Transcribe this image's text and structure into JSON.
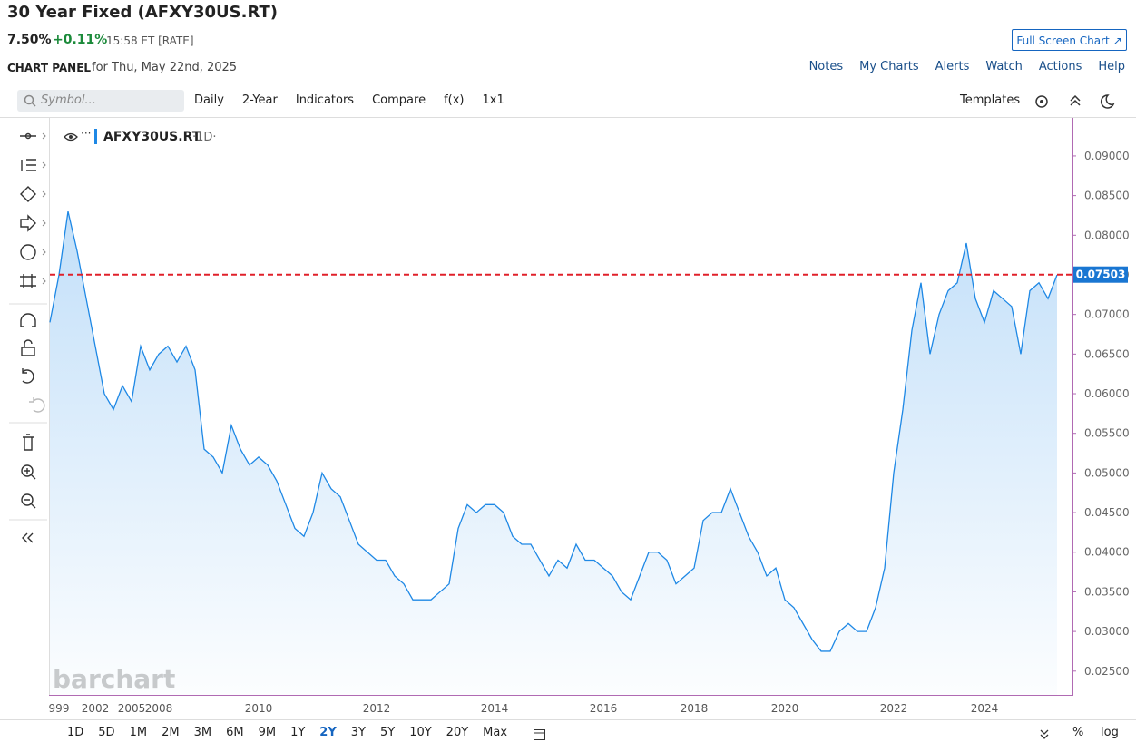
{
  "header": {
    "title": "30 Year Fixed (AFXY30US.RT)",
    "price": "7.50%",
    "change": "+0.11%",
    "time": "15:58 ET [RATE]",
    "fullscreen": "Full Screen Chart",
    "panel": "CHART PANEL",
    "date": "for Thu, May 22nd, 2025",
    "nav": [
      "Notes",
      "My Charts",
      "Alerts",
      "Watch",
      "Actions",
      "Help"
    ]
  },
  "toolbar": {
    "symbol": "Symbol...",
    "items": [
      "Daily",
      "2-Year",
      "Indicators",
      "Compare",
      "f(x)",
      "1x1"
    ],
    "templates": "Templates"
  },
  "footer": {
    "periods": [
      "1D",
      "5D",
      "1M",
      "2M",
      "3M",
      "6M",
      "9M",
      "1Y",
      "2Y",
      "3Y",
      "5Y",
      "10Y",
      "20Y",
      "Max"
    ],
    "percent": "%",
    "log": "log"
  },
  "chart_data": {
    "type": "line",
    "watermark": "barchart",
    "legend": {
      "symbol": "AFXY30US.RT",
      "interval": "·1D·"
    },
    "categories": [
      null,
      "999",
      null,
      null,
      null,
      "2002",
      null,
      null,
      null,
      "2005",
      null,
      null,
      "2008",
      null,
      null,
      null,
      null,
      null,
      null,
      null,
      null,
      null,
      null,
      "2010",
      null,
      null,
      null,
      null,
      null,
      null,
      null,
      null,
      null,
      null,
      null,
      null,
      "2012",
      null,
      null,
      null,
      null,
      null,
      null,
      null,
      null,
      null,
      null,
      null,
      null,
      "2014",
      null,
      null,
      null,
      null,
      null,
      null,
      null,
      null,
      null,
      null,
      null,
      "2016",
      null,
      null,
      null,
      null,
      null,
      null,
      null,
      null,
      null,
      "2018",
      null,
      null,
      null,
      null,
      null,
      null,
      null,
      null,
      null,
      "2020",
      null,
      null,
      null,
      null,
      null,
      null,
      null,
      null,
      null,
      null,
      null,
      "2022",
      null,
      null,
      null,
      null,
      null,
      null,
      null,
      null,
      null,
      "2024",
      null,
      null,
      null,
      null,
      null,
      null,
      null,
      null
    ],
    "series": [
      {
        "name": "AFXY30US.RT",
        "color": "#1e88e5",
        "values": [
          0.069,
          0.075,
          0.083,
          0.078,
          0.072,
          0.066,
          0.06,
          0.058,
          0.061,
          0.059,
          0.066,
          0.063,
          0.065,
          0.066,
          0.064,
          0.066,
          0.063,
          0.053,
          0.052,
          0.05,
          0.056,
          0.053,
          0.051,
          0.052,
          0.051,
          0.049,
          0.046,
          0.043,
          0.042,
          0.045,
          0.05,
          0.048,
          0.047,
          0.044,
          0.041,
          0.04,
          0.039,
          0.039,
          0.037,
          0.036,
          0.034,
          0.034,
          0.034,
          0.035,
          0.036,
          0.043,
          0.046,
          0.045,
          0.046,
          0.046,
          0.045,
          0.042,
          0.041,
          0.041,
          0.039,
          0.037,
          0.039,
          0.038,
          0.041,
          0.039,
          0.039,
          0.038,
          0.037,
          0.035,
          0.034,
          0.037,
          0.04,
          0.04,
          0.039,
          0.036,
          0.037,
          0.038,
          0.044,
          0.045,
          0.045,
          0.048,
          0.045,
          0.042,
          0.04,
          0.037,
          0.038,
          0.034,
          0.033,
          0.031,
          0.029,
          0.0275,
          0.0275,
          0.03,
          0.031,
          0.03,
          0.03,
          0.033,
          0.038,
          0.05,
          0.058,
          0.068,
          0.074,
          0.065,
          0.07,
          0.073,
          0.074,
          0.079,
          0.072,
          0.069,
          0.073,
          0.072,
          0.071,
          0.065,
          0.073,
          0.074,
          0.072,
          0.075
        ]
      }
    ],
    "last_value": {
      "value": 0.07503,
      "label": "0.07503"
    },
    "last_color": "#e0202a",
    "ylim": [
      0.022,
      0.0948
    ],
    "yticks": [
      {
        "value": 0.025,
        "label": "0.02500"
      },
      {
        "value": 0.03,
        "label": "0.03000"
      },
      {
        "value": 0.035,
        "label": "0.03500"
      },
      {
        "value": 0.04,
        "label": "0.04000"
      },
      {
        "value": 0.045,
        "label": "0.04500"
      },
      {
        "value": 0.05,
        "label": "0.05000"
      },
      {
        "value": 0.055,
        "label": "0.05500"
      },
      {
        "value": 0.06,
        "label": "0.06000"
      },
      {
        "value": 0.065,
        "label": "0.06500"
      },
      {
        "value": 0.07,
        "label": "0.07000"
      },
      {
        "value": 0.075,
        "label": "0.07500"
      },
      {
        "value": 0.08,
        "label": "0.08000"
      },
      {
        "value": 0.085,
        "label": "0.08500"
      },
      {
        "value": 0.09,
        "label": "0.09000"
      }
    ],
    "grid": false
  }
}
